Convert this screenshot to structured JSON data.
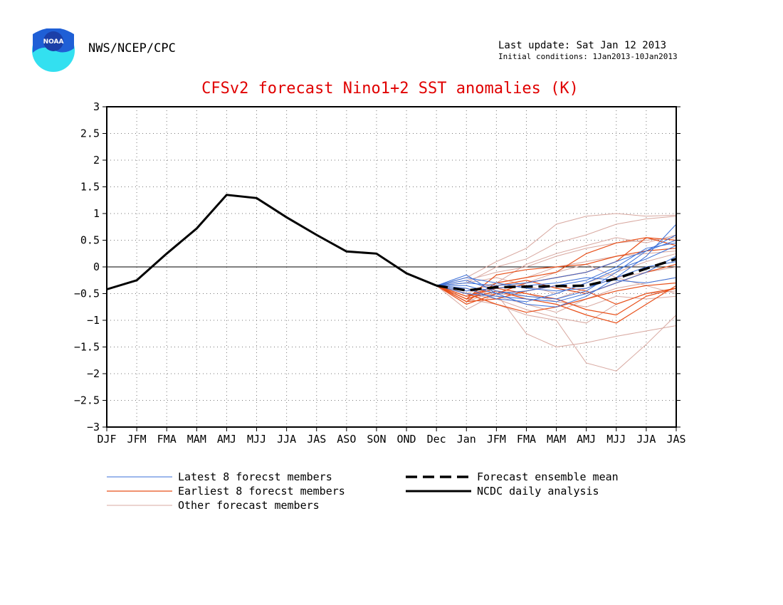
{
  "header": {
    "agency": "NWS/NCEP/CPC",
    "last_update": "Last update: Sat Jan 12 2013",
    "initial_conditions": "Initial conditions: 1Jan2013-10Jan2013",
    "logo_text": "NOAA"
  },
  "colors": {
    "title": "#e00000",
    "latest": "#3a6fd8",
    "earliest": "#e8501a",
    "other": "#d8a8a0",
    "analysis": "#000000",
    "mean": "#000000"
  },
  "chart_data": {
    "type": "line",
    "title": "CFSv2 forecast Nino1+2 SST anomalies (K)",
    "xlabel": "",
    "ylabel": "",
    "ylim": [
      -3,
      3
    ],
    "yticks": [
      "-3",
      "-2.5",
      "-2",
      "-1.5",
      "-1",
      "-0.5",
      "0",
      "0.5",
      "1",
      "1.5",
      "2",
      "2.5",
      "3"
    ],
    "categories": [
      "DJF",
      "JFM",
      "FMA",
      "MAM",
      "AMJ",
      "MJJ",
      "JJA",
      "JAS",
      "ASO",
      "SON",
      "OND",
      "Dec",
      "Jan",
      "JFM",
      "FMA",
      "MAM",
      "AMJ",
      "MJJ",
      "JJA",
      "JAS"
    ],
    "grid": true,
    "legend": [
      {
        "label": "Latest 8 forecst members",
        "style": "latest"
      },
      {
        "label": "Earliest 8 forecst members",
        "style": "earliest"
      },
      {
        "label": "Other forecast members",
        "style": "other"
      },
      {
        "label": "Forecast ensemble mean",
        "style": "mean"
      },
      {
        "label": "NCDC daily analysis",
        "style": "analysis"
      }
    ],
    "analysis": {
      "name": "NCDC daily analysis",
      "x_start": 0,
      "values": [
        -0.42,
        -0.25,
        0.25,
        0.72,
        1.35,
        1.29,
        0.93,
        0.6,
        0.29,
        0.25,
        -0.12,
        -0.35
      ]
    },
    "mean": {
      "name": "Forecast ensemble mean",
      "x_start": 11,
      "values": [
        -0.35,
        -0.44,
        -0.38,
        -0.37,
        -0.36,
        -0.35,
        -0.22,
        -0.03,
        0.15
      ]
    },
    "members": {
      "x_start": 11,
      "latest": [
        [
          -0.35,
          -0.15,
          -0.5,
          -0.7,
          -0.75,
          -0.55,
          -0.2,
          0.2,
          0.8
        ],
        [
          -0.35,
          -0.25,
          -0.45,
          -0.55,
          -0.6,
          -0.45,
          -0.1,
          0.3,
          0.6
        ],
        [
          -0.35,
          -0.4,
          -0.6,
          -0.65,
          -0.5,
          -0.3,
          -0.05,
          0.15,
          0.4
        ],
        [
          -0.35,
          -0.3,
          -0.35,
          -0.3,
          -0.2,
          -0.1,
          0.1,
          0.3,
          0.5
        ],
        [
          -0.35,
          -0.5,
          -0.55,
          -0.6,
          -0.65,
          -0.5,
          -0.3,
          -0.1,
          0.2
        ],
        [
          -0.35,
          -0.2,
          -0.3,
          -0.4,
          -0.45,
          -0.4,
          -0.2,
          0.0,
          0.1
        ],
        [
          -0.35,
          -0.45,
          -0.4,
          -0.35,
          -0.3,
          -0.2,
          -0.25,
          -0.3,
          -0.2
        ],
        [
          -0.35,
          -0.35,
          -0.5,
          -0.45,
          -0.35,
          -0.25,
          0.0,
          0.35,
          0.45
        ]
      ],
      "earliest": [
        [
          -0.35,
          -0.65,
          -0.3,
          -0.2,
          -0.1,
          0.25,
          0.45,
          0.55,
          0.5
        ],
        [
          -0.35,
          -0.6,
          -0.45,
          -0.6,
          -0.7,
          -0.9,
          -1.05,
          -0.7,
          -0.35
        ],
        [
          -0.35,
          -0.7,
          -0.5,
          -0.3,
          -0.2,
          -0.1,
          0.1,
          0.55,
          0.4
        ],
        [
          -0.35,
          -0.55,
          -0.4,
          -0.5,
          -0.6,
          -0.8,
          -0.9,
          -0.55,
          -0.4
        ],
        [
          -0.35,
          -0.6,
          -0.15,
          -0.05,
          0.0,
          0.05,
          0.2,
          0.3,
          0.35
        ],
        [
          -0.35,
          -0.5,
          -0.7,
          -0.85,
          -0.75,
          -0.6,
          -0.45,
          -0.35,
          -0.3
        ],
        [
          -0.35,
          -0.65,
          -0.6,
          -0.45,
          -0.35,
          -0.45,
          -0.7,
          -0.5,
          -0.4
        ],
        [
          -0.35,
          -0.55,
          -0.35,
          -0.25,
          -0.4,
          -0.5,
          -0.3,
          -0.1,
          0.05
        ]
      ],
      "other": [
        [
          -0.35,
          -0.2,
          0.1,
          0.35,
          0.8,
          0.95,
          1.0,
          0.95,
          0.97
        ],
        [
          -0.35,
          -0.3,
          0.0,
          0.15,
          0.45,
          0.6,
          0.8,
          0.9,
          0.95
        ],
        [
          -0.35,
          -0.8,
          -0.5,
          -1.25,
          -1.5,
          -1.42,
          -1.3,
          -1.2,
          -1.1
        ],
        [
          -0.35,
          -0.6,
          -0.7,
          -0.9,
          -1.0,
          -1.8,
          -1.95,
          -1.45,
          -0.9
        ],
        [
          -0.35,
          -0.5,
          -0.6,
          -0.8,
          -0.95,
          -1.05,
          -0.7,
          -0.5,
          -0.45
        ],
        [
          -0.35,
          -0.25,
          -0.1,
          0.0,
          0.2,
          0.35,
          0.45,
          0.5,
          0.55
        ],
        [
          -0.35,
          -0.45,
          -0.3,
          -0.2,
          0.0,
          0.1,
          0.2,
          0.25,
          0.3
        ],
        [
          -0.35,
          -0.55,
          -0.5,
          -0.55,
          -0.6,
          -0.4,
          -0.2,
          -0.1,
          0.0
        ],
        [
          -0.35,
          -0.4,
          -0.55,
          -0.7,
          -0.85,
          -0.6,
          -0.4,
          -0.3,
          -0.2
        ],
        [
          -0.35,
          -0.3,
          -0.2,
          -0.35,
          -0.5,
          -0.3,
          -0.1,
          0.1,
          0.25
        ],
        [
          -0.35,
          -0.6,
          -0.4,
          -0.3,
          -0.1,
          0.05,
          -0.2,
          -0.35,
          -0.5
        ],
        [
          -0.35,
          -0.5,
          -0.3,
          0.05,
          0.25,
          0.4,
          0.55,
          0.45,
          0.6
        ],
        [
          -0.35,
          -0.65,
          -0.45,
          -0.5,
          -0.65,
          -0.75,
          -0.55,
          -0.6,
          -0.55
        ]
      ]
    }
  }
}
